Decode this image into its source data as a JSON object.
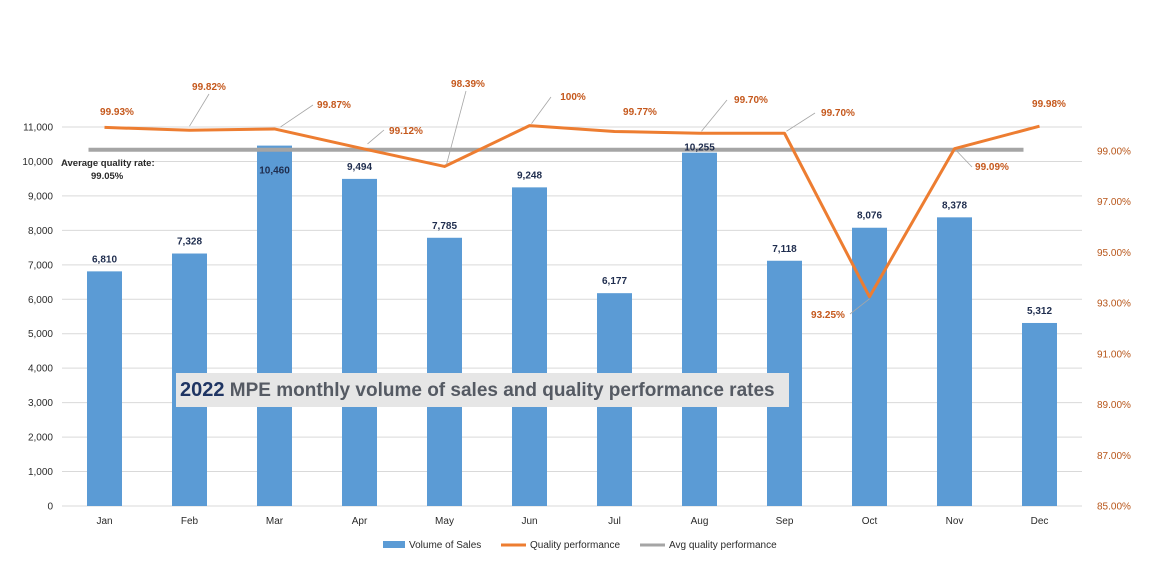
{
  "chart_data": {
    "type": "bar",
    "title_year": "2022",
    "title_rest": " MPE monthly volume of sales and quality performance rates",
    "categories": [
      "Jan",
      "Feb",
      "Mar",
      "Apr",
      "May",
      "Jun",
      "Jul",
      "Aug",
      "Sep",
      "Oct",
      "Nov",
      "Dec"
    ],
    "bars": {
      "name": "Volume of Sales",
      "values": [
        6810,
        7328,
        10460,
        9494,
        7785,
        9248,
        6177,
        10255,
        7118,
        8076,
        8378,
        5312
      ],
      "labels": [
        "6,810",
        "7,328",
        "10,460",
        "9,494",
        "7,785",
        "9,248",
        "6,177",
        "10,255",
        "7,118",
        "8,076",
        "8,378",
        "5,312"
      ],
      "color": "#5b9bd5"
    },
    "line": {
      "name": "Quality performance",
      "values": [
        99.93,
        99.82,
        99.87,
        99.12,
        98.39,
        100.0,
        99.77,
        99.7,
        99.7,
        93.25,
        99.09,
        99.98
      ],
      "labels": [
        "99.93%",
        "99.82%",
        "99.87%",
        "99.12%",
        "98.39%",
        "100%",
        "99.77%",
        "99.70%",
        "99.70%",
        "93.25%",
        "99.09%",
        "99.98%"
      ],
      "color": "#ed7d31"
    },
    "avg_line": {
      "name": "Avg quality performance",
      "value": 99.05,
      "note_line1": "Average quality rate:",
      "note_line2": "99.05%",
      "color": "#a5a5a5"
    },
    "y_left": {
      "min": 0,
      "max": 11000,
      "ticks": [
        0,
        1000,
        2000,
        3000,
        4000,
        5000,
        6000,
        7000,
        8000,
        9000,
        10000,
        11000
      ],
      "tick_labels": [
        "0",
        "1,000",
        "2,000",
        "3,000",
        "4,000",
        "5,000",
        "6,000",
        "7,000",
        "8,000",
        "9,000",
        "10,000",
        "11,000"
      ]
    },
    "y_right": {
      "min": 85,
      "max": 99,
      "ticks": [
        85,
        87,
        89,
        91,
        93,
        95,
        97,
        99
      ],
      "tick_labels": [
        "85.00%",
        "87.00%",
        "89.00%",
        "91.00%",
        "93.00%",
        "95.00%",
        "97.00%",
        "99.00%"
      ]
    },
    "grid": true,
    "legend_position": "bottom"
  }
}
